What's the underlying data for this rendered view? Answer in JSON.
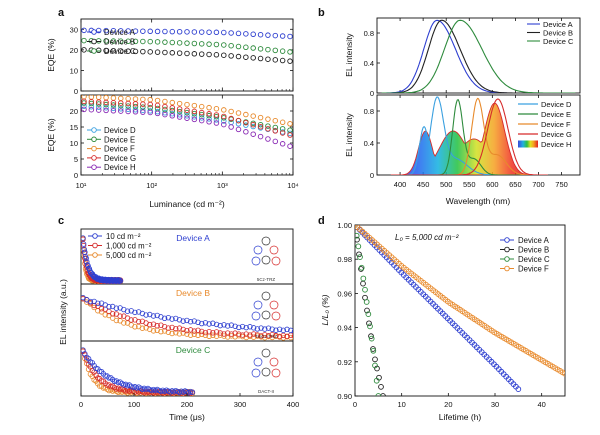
{
  "panels": {
    "a": {
      "letter": "a"
    },
    "b": {
      "letter": "b"
    },
    "c": {
      "letter": "c"
    },
    "d": {
      "letter": "d"
    }
  },
  "chart_data": [
    {
      "id": "a-top",
      "type": "scatter",
      "xlabel": "Luminance (cd m⁻²)",
      "ylabel": "EQE (%)",
      "xscale": "log",
      "xlim": [
        10,
        10000
      ],
      "ylim": [
        0,
        35
      ],
      "yticks": [
        0,
        10,
        20,
        30
      ],
      "xtick_labels": [
        "10¹",
        "10²",
        "10³",
        "10⁴"
      ],
      "legend_position": "left",
      "series": [
        {
          "name": "Device A",
          "color": "#2e3fd0",
          "x": [
            10,
            100,
            1000,
            10000
          ],
          "y": [
            29.5,
            29.0,
            28.5,
            26.5
          ]
        },
        {
          "name": "Device B",
          "color": "#222222",
          "x": [
            10,
            100,
            1000,
            10000
          ],
          "y": [
            20.0,
            19.0,
            17.5,
            14.5
          ]
        },
        {
          "name": "Device C",
          "color": "#2e8b3d",
          "x": [
            10,
            100,
            1000,
            10000
          ],
          "y": [
            24.5,
            24.0,
            22.5,
            19.0
          ]
        }
      ]
    },
    {
      "id": "a-bottom",
      "type": "scatter",
      "xlabel": "Luminance (cd m⁻²)",
      "ylabel": "EQE (%)",
      "xscale": "log",
      "xlim": [
        10,
        10000
      ],
      "ylim": [
        0,
        25
      ],
      "yticks": [
        0,
        5,
        10,
        15,
        20
      ],
      "xtick_labels": [
        "10¹",
        "10²",
        "10³",
        "10⁴"
      ],
      "legend_position": "left",
      "series": [
        {
          "name": "Device D",
          "color": "#3aa0e0",
          "x": [
            10,
            100,
            1000,
            10000
          ],
          "y": [
            21.5,
            20.0,
            17.0,
            13.0
          ]
        },
        {
          "name": "Device E",
          "color": "#2e8b3d",
          "x": [
            10,
            100,
            1000,
            10000
          ],
          "y": [
            22.5,
            21.0,
            18.0,
            14.0
          ]
        },
        {
          "name": "Device F",
          "color": "#e88a2c",
          "x": [
            10,
            100,
            1000,
            10000
          ],
          "y": [
            24.5,
            23.5,
            20.5,
            16.0
          ]
        },
        {
          "name": "Device G",
          "color": "#d62b2b",
          "x": [
            10,
            100,
            1000,
            10000
          ],
          "y": [
            23.0,
            22.0,
            18.5,
            12.5
          ]
        },
        {
          "name": "Device H",
          "color": "#8a2bb5",
          "x": [
            10,
            100,
            1000,
            10000
          ],
          "y": [
            20.5,
            19.5,
            16.0,
            9.0
          ]
        }
      ]
    },
    {
      "id": "b-top",
      "type": "line",
      "xlabel": "Wavelength (nm)",
      "ylabel": "EL intensity",
      "xlim": [
        350,
        790
      ],
      "ylim": [
        0,
        1.0
      ],
      "yticks": [
        0,
        0.4,
        0.8
      ],
      "xticks": [
        400,
        450,
        500,
        550,
        600,
        650,
        700,
        750
      ],
      "legend_position": "top-right",
      "series": [
        {
          "name": "Device A",
          "color": "#2e3fd0",
          "peak": 480,
          "width": 38
        },
        {
          "name": "Device B",
          "color": "#222222",
          "peak": 490,
          "width": 38
        },
        {
          "name": "Device C",
          "color": "#2e8b3d",
          "peak": 530,
          "width": 45
        }
      ]
    },
    {
      "id": "b-bottom",
      "type": "line",
      "xlabel": "Wavelength (nm)",
      "ylabel": "EL intensity",
      "xlim": [
        350,
        790
      ],
      "ylim": [
        0,
        1.0
      ],
      "yticks": [
        0,
        0.4,
        0.8
      ],
      "xticks": [
        400,
        450,
        500,
        550,
        600,
        650,
        700,
        750
      ],
      "legend_position": "right",
      "series": [
        {
          "name": "Device D",
          "color": "#3aa0e0",
          "peaks": [
            455,
            480
          ],
          "width": 15
        },
        {
          "name": "Device E",
          "color": "#2e8b3d",
          "peak": 525,
          "width": 12
        },
        {
          "name": "Device F",
          "color": "#e88a2c",
          "peak": 568,
          "width": 14
        },
        {
          "name": "Device G",
          "color": "#d62b2b",
          "peak": 610,
          "width": 25
        },
        {
          "name": "Device H",
          "color": "rainbow",
          "peak": 605,
          "width": 70
        }
      ]
    },
    {
      "id": "c",
      "type": "scatter",
      "xlabel": "Time (μs)",
      "ylabel": "EL intensity (a.u.)",
      "xlim": [
        0,
        400
      ],
      "xticks": [
        0,
        100,
        200,
        300,
        400
      ],
      "legend_position": "top-left",
      "legend": [
        {
          "name": "10 cd m⁻²",
          "color": "#2e3fd0"
        },
        {
          "name": "1,000 cd m⁻²",
          "color": "#d62b2b"
        },
        {
          "name": "5,000 cd m⁻²",
          "color": "#e88a2c"
        }
      ],
      "subplots": [
        {
          "label": "Device A",
          "label_color": "#2e3fd0",
          "molecule": "5Cz-TRZ",
          "decay": "fast"
        },
        {
          "label": "Device B",
          "label_color": "#e88a2c",
          "molecule": "TmCz-TRZ",
          "decay": "slow"
        },
        {
          "label": "Device C",
          "label_color": "#2e8b3d",
          "molecule": "DACT-II",
          "decay": "medium"
        }
      ]
    },
    {
      "id": "d",
      "type": "scatter",
      "xlabel": "Lifetime (h)",
      "ylabel": "L/L₀ (%)",
      "xlim": [
        0,
        45
      ],
      "ylim": [
        0.9,
        1.0
      ],
      "xticks": [
        0,
        10,
        20,
        30,
        40
      ],
      "yticks": [
        0.9,
        0.92,
        0.94,
        0.96,
        0.98,
        1.0
      ],
      "annotation": "L₀ = 5,000 cd m⁻²",
      "legend_position": "top-right",
      "series": [
        {
          "name": "Device A",
          "color": "#2e3fd0",
          "x": [
            0,
            10,
            20,
            30,
            35
          ],
          "y": [
            1.0,
            0.972,
            0.945,
            0.918,
            0.904
          ]
        },
        {
          "name": "Device B",
          "color": "#222222",
          "x": [
            0,
            2,
            4,
            6
          ],
          "y": [
            1.0,
            0.96,
            0.925,
            0.9
          ]
        },
        {
          "name": "Device C",
          "color": "#2e8b3d",
          "x": [
            0,
            2,
            4,
            5
          ],
          "y": [
            1.0,
            0.965,
            0.925,
            0.9
          ]
        },
        {
          "name": "Device F",
          "color": "#e88a2c",
          "x": [
            0,
            10,
            20,
            30,
            40,
            45
          ],
          "y": [
            1.0,
            0.976,
            0.955,
            0.937,
            0.921,
            0.913
          ]
        }
      ]
    }
  ]
}
